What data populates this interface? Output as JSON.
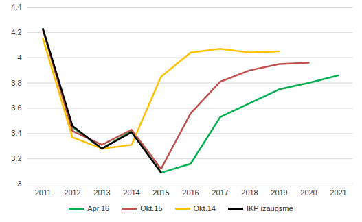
{
  "chart_data": {
    "type": "line",
    "categories": [
      "2011",
      "2012",
      "2013",
      "2014",
      "2015",
      "2016",
      "2017",
      "2018",
      "2019",
      "2020",
      "2021"
    ],
    "series": [
      {
        "name": "Apr.16",
        "color": "#00b050",
        "values": [
          4.22,
          3.45,
          3.28,
          3.42,
          3.09,
          3.16,
          3.53,
          3.64,
          3.75,
          3.8,
          3.86
        ]
      },
      {
        "name": "Okt.15",
        "color": "#c0504d",
        "values": [
          4.22,
          3.42,
          3.31,
          3.43,
          3.12,
          3.56,
          3.81,
          3.9,
          3.95,
          3.96,
          null
        ]
      },
      {
        "name": "Okt.14",
        "color": "#ffc000",
        "values": [
          4.15,
          3.37,
          3.28,
          3.31,
          3.85,
          4.04,
          4.07,
          4.04,
          4.05,
          null,
          null
        ]
      },
      {
        "name": "IKP izaugsme",
        "color": "#000000",
        "values": [
          4.23,
          3.46,
          3.28,
          3.41,
          3.09,
          null,
          null,
          null,
          null,
          null,
          null
        ]
      }
    ],
    "ylim": [
      3,
      4.4
    ],
    "yticks": [
      3,
      3.2,
      3.4,
      3.6,
      3.8,
      4,
      4.2,
      4.4
    ],
    "grid": true,
    "legend": "bottom"
  }
}
